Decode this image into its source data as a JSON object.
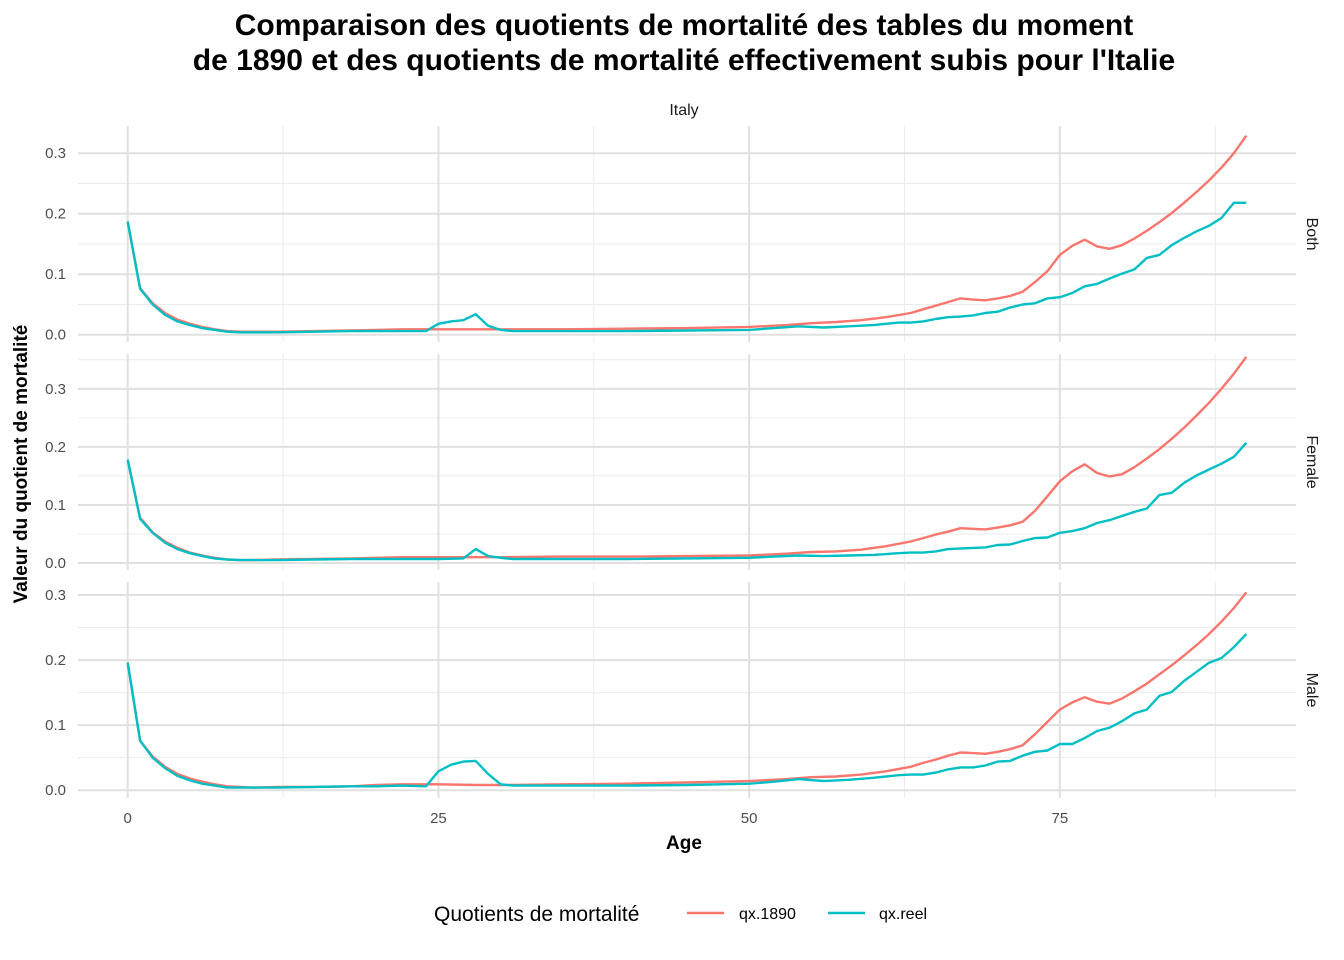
{
  "chart_data": {
    "type": "line",
    "title_lines": [
      "Comparaison des quotients de mortalité des tables du moment",
      "de 1890 et des quotients de mortalité effectivement subis pour l'Italie"
    ],
    "top_strip": "Italy",
    "xlabel": "Age",
    "ylabel": "Valeur du quotient de mortalité",
    "xlim": [
      -4,
      94
    ],
    "x_ticks": [
      0,
      25,
      50,
      75
    ],
    "x_tick_labels": [
      "0",
      "25",
      "50",
      "75"
    ],
    "legend": {
      "title": "Quotients de mortalité",
      "position": "bottom",
      "entries": [
        "qx.1890",
        "qx.reel"
      ]
    },
    "colors": {
      "qx.1890": "#F8766D",
      "qx.reel": "#00BFC4"
    },
    "grid": true,
    "panels": [
      {
        "label": "Both",
        "ylim": [
          -0.012,
          0.345
        ],
        "y_ticks": [
          0,
          0.1,
          0.2,
          0.3
        ],
        "y_tick_labels": [
          "0.0",
          "0.1",
          "0.2",
          "0.3"
        ],
        "series": [
          {
            "name": "qx.1890",
            "x": [
              0,
              1,
              2,
              3,
              4,
              5,
              6,
              7,
              8,
              9,
              10,
              12,
              15,
              18,
              20,
              22,
              25,
              28,
              30,
              35,
              40,
              45,
              50,
              53,
              55,
              57,
              59,
              61,
              63,
              64,
              65,
              66,
              67,
              68,
              69,
              70,
              71,
              72,
              73,
              74,
              75,
              76,
              77,
              78,
              79,
              80,
              81,
              82,
              83,
              84,
              85,
              86,
              87,
              88,
              89,
              90
            ],
            "values": [
              0.187,
              0.077,
              0.052,
              0.036,
              0.025,
              0.018,
              0.013,
              0.009,
              0.006,
              0.005,
              0.005,
              0.005,
              0.006,
              0.007,
              0.008,
              0.009,
              0.009,
              0.009,
              0.009,
              0.009,
              0.01,
              0.011,
              0.013,
              0.016,
              0.019,
              0.021,
              0.024,
              0.029,
              0.036,
              0.042,
              0.048,
              0.054,
              0.06,
              0.058,
              0.057,
              0.06,
              0.064,
              0.071,
              0.087,
              0.105,
              0.132,
              0.147,
              0.157,
              0.146,
              0.142,
              0.148,
              0.159,
              0.172,
              0.186,
              0.201,
              0.218,
              0.236,
              0.255,
              0.276,
              0.3,
              0.329
            ]
          },
          {
            "name": "qx.reel",
            "x": [
              0,
              1,
              2,
              3,
              4,
              5,
              6,
              7,
              8,
              9,
              10,
              12,
              15,
              18,
              20,
              22,
              24,
              25,
              26,
              27,
              28,
              29,
              30,
              31,
              35,
              40,
              45,
              50,
              52,
              54,
              56,
              58,
              60,
              62,
              63,
              64,
              65,
              66,
              67,
              68,
              69,
              70,
              71,
              72,
              73,
              74,
              75,
              76,
              77,
              78,
              79,
              80,
              81,
              82,
              83,
              84,
              85,
              86,
              87,
              88,
              89,
              90
            ],
            "values": [
              0.187,
              0.076,
              0.05,
              0.033,
              0.022,
              0.016,
              0.011,
              0.008,
              0.005,
              0.004,
              0.004,
              0.004,
              0.005,
              0.006,
              0.006,
              0.006,
              0.006,
              0.018,
              0.022,
              0.024,
              0.034,
              0.015,
              0.008,
              0.006,
              0.006,
              0.006,
              0.007,
              0.008,
              0.011,
              0.014,
              0.012,
              0.014,
              0.016,
              0.02,
              0.02,
              0.022,
              0.026,
              0.029,
              0.03,
              0.032,
              0.036,
              0.038,
              0.045,
              0.05,
              0.052,
              0.06,
              0.062,
              0.069,
              0.08,
              0.084,
              0.093,
              0.101,
              0.108,
              0.127,
              0.132,
              0.148,
              0.16,
              0.171,
              0.18,
              0.193,
              0.218,
              0.218
            ]
          }
        ]
      },
      {
        "label": "Female",
        "ylim": [
          -0.012,
          0.36
        ],
        "y_ticks": [
          0,
          0.1,
          0.2,
          0.3
        ],
        "y_tick_labels": [
          "0.0",
          "0.1",
          "0.2",
          "0.3"
        ],
        "series": [
          {
            "name": "qx.1890",
            "x": [
              0,
              1,
              2,
              3,
              4,
              5,
              6,
              7,
              8,
              9,
              10,
              12,
              15,
              18,
              20,
              22,
              25,
              28,
              30,
              35,
              40,
              45,
              50,
              53,
              55,
              57,
              59,
              61,
              63,
              64,
              65,
              66,
              67,
              68,
              69,
              70,
              71,
              72,
              73,
              74,
              75,
              76,
              77,
              78,
              79,
              80,
              81,
              82,
              83,
              84,
              85,
              86,
              87,
              88,
              89,
              90
            ],
            "values": [
              0.178,
              0.078,
              0.053,
              0.037,
              0.026,
              0.018,
              0.013,
              0.009,
              0.006,
              0.005,
              0.005,
              0.006,
              0.007,
              0.008,
              0.009,
              0.01,
              0.01,
              0.01,
              0.01,
              0.011,
              0.011,
              0.012,
              0.013,
              0.016,
              0.019,
              0.02,
              0.023,
              0.029,
              0.037,
              0.043,
              0.049,
              0.054,
              0.06,
              0.059,
              0.058,
              0.061,
              0.065,
              0.071,
              0.09,
              0.115,
              0.141,
              0.158,
              0.17,
              0.155,
              0.149,
              0.153,
              0.165,
              0.18,
              0.196,
              0.214,
              0.233,
              0.254,
              0.276,
              0.3,
              0.326,
              0.355
            ]
          },
          {
            "name": "qx.reel",
            "x": [
              0,
              1,
              2,
              3,
              4,
              5,
              6,
              7,
              8,
              9,
              10,
              12,
              15,
              18,
              20,
              22,
              25,
              27,
              28,
              29,
              30,
              31,
              35,
              40,
              45,
              50,
              52,
              54,
              56,
              58,
              60,
              62,
              63,
              64,
              65,
              66,
              67,
              68,
              69,
              70,
              71,
              72,
              73,
              74,
              75,
              76,
              77,
              78,
              79,
              80,
              81,
              82,
              83,
              84,
              85,
              86,
              87,
              88,
              89,
              90
            ],
            "values": [
              0.178,
              0.076,
              0.052,
              0.035,
              0.024,
              0.017,
              0.012,
              0.008,
              0.006,
              0.005,
              0.005,
              0.005,
              0.006,
              0.007,
              0.007,
              0.007,
              0.007,
              0.008,
              0.024,
              0.012,
              0.009,
              0.007,
              0.007,
              0.007,
              0.008,
              0.009,
              0.011,
              0.013,
              0.012,
              0.013,
              0.014,
              0.017,
              0.018,
              0.018,
              0.02,
              0.024,
              0.025,
              0.026,
              0.027,
              0.031,
              0.032,
              0.038,
              0.043,
              0.044,
              0.052,
              0.055,
              0.06,
              0.069,
              0.074,
              0.081,
              0.088,
              0.094,
              0.117,
              0.121,
              0.138,
              0.151,
              0.161,
              0.171,
              0.183,
              0.207
            ]
          }
        ]
      },
      {
        "label": "Male",
        "ylim": [
          -0.012,
          0.32
        ],
        "y_ticks": [
          0,
          0.1,
          0.2,
          0.3
        ],
        "y_tick_labels": [
          "0.0",
          "0.1",
          "0.2",
          "0.3"
        ],
        "series": [
          {
            "name": "qx.1890",
            "x": [
              0,
              1,
              2,
              3,
              4,
              5,
              6,
              7,
              8,
              9,
              10,
              12,
              15,
              18,
              20,
              22,
              25,
              28,
              30,
              35,
              40,
              45,
              50,
              53,
              55,
              57,
              59,
              61,
              63,
              64,
              65,
              66,
              67,
              68,
              69,
              70,
              71,
              72,
              73,
              74,
              75,
              76,
              77,
              78,
              79,
              80,
              81,
              82,
              83,
              84,
              85,
              86,
              87,
              88,
              89,
              90
            ],
            "values": [
              0.196,
              0.076,
              0.052,
              0.036,
              0.025,
              0.018,
              0.013,
              0.009,
              0.006,
              0.005,
              0.004,
              0.005,
              0.005,
              0.006,
              0.008,
              0.009,
              0.009,
              0.008,
              0.008,
              0.009,
              0.01,
              0.012,
              0.014,
              0.017,
              0.02,
              0.021,
              0.024,
              0.029,
              0.036,
              0.042,
              0.047,
              0.053,
              0.058,
              0.057,
              0.056,
              0.059,
              0.063,
              0.069,
              0.086,
              0.105,
              0.124,
              0.135,
              0.143,
              0.136,
              0.133,
              0.141,
              0.152,
              0.164,
              0.178,
              0.192,
              0.207,
              0.223,
              0.24,
              0.259,
              0.28,
              0.304
            ]
          },
          {
            "name": "qx.reel",
            "x": [
              0,
              1,
              2,
              3,
              4,
              5,
              6,
              7,
              8,
              9,
              10,
              12,
              15,
              18,
              20,
              22,
              24,
              25,
              26,
              27,
              28,
              29,
              30,
              31,
              35,
              40,
              45,
              50,
              52,
              54,
              56,
              58,
              60,
              62,
              63,
              64,
              65,
              66,
              67,
              68,
              69,
              70,
              71,
              72,
              73,
              74,
              75,
              76,
              77,
              78,
              79,
              80,
              81,
              82,
              83,
              84,
              85,
              86,
              87,
              88,
              89,
              90
            ],
            "values": [
              0.196,
              0.076,
              0.05,
              0.034,
              0.022,
              0.015,
              0.01,
              0.007,
              0.004,
              0.004,
              0.004,
              0.004,
              0.005,
              0.006,
              0.006,
              0.007,
              0.006,
              0.029,
              0.039,
              0.044,
              0.045,
              0.025,
              0.009,
              0.007,
              0.007,
              0.007,
              0.008,
              0.01,
              0.013,
              0.017,
              0.014,
              0.016,
              0.019,
              0.023,
              0.024,
              0.024,
              0.027,
              0.032,
              0.035,
              0.035,
              0.038,
              0.044,
              0.045,
              0.053,
              0.059,
              0.061,
              0.071,
              0.071,
              0.08,
              0.091,
              0.096,
              0.106,
              0.118,
              0.124,
              0.145,
              0.151,
              0.168,
              0.182,
              0.196,
              0.203,
              0.22,
              0.24
            ]
          }
        ]
      }
    ]
  }
}
